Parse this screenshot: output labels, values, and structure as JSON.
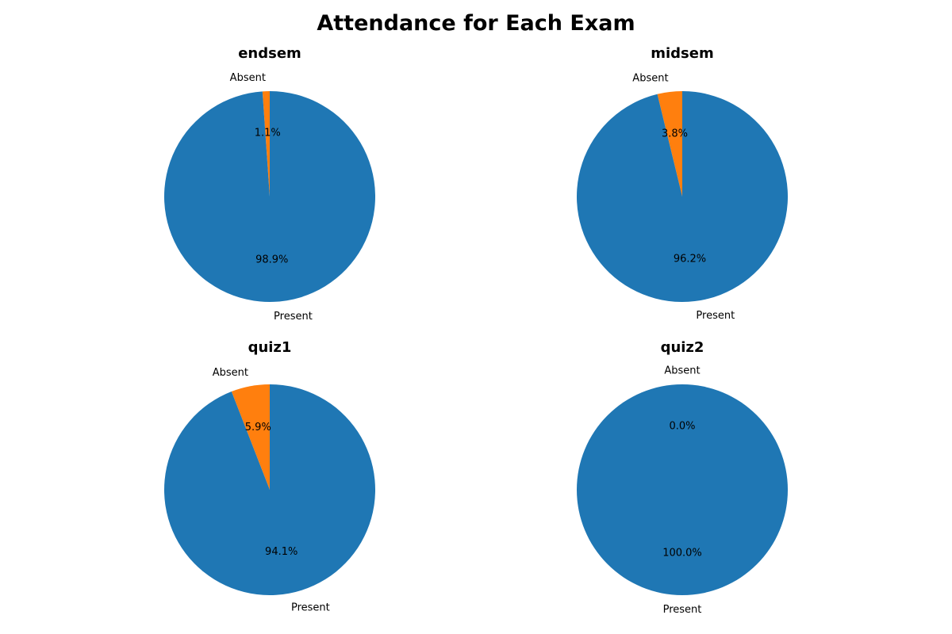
{
  "title": "Attendance for Each Exam",
  "colors": {
    "present": "#1f77b4",
    "absent": "#ff7f0e"
  },
  "chart_data": [
    {
      "type": "pie",
      "title": "endsem",
      "labels": [
        "Absent",
        "Present"
      ],
      "values": [
        1.1,
        98.9
      ],
      "value_labels": [
        "1.1%",
        "98.9%"
      ],
      "colors": [
        "#ff7f0e",
        "#1f77b4"
      ],
      "start_angle_deg": 90,
      "direction": "counterclockwise"
    },
    {
      "type": "pie",
      "title": "midsem",
      "labels": [
        "Absent",
        "Present"
      ],
      "values": [
        3.8,
        96.2
      ],
      "value_labels": [
        "3.8%",
        "96.2%"
      ],
      "colors": [
        "#ff7f0e",
        "#1f77b4"
      ],
      "start_angle_deg": 90,
      "direction": "counterclockwise"
    },
    {
      "type": "pie",
      "title": "quiz1",
      "labels": [
        "Absent",
        "Present"
      ],
      "values": [
        5.9,
        94.1
      ],
      "value_labels": [
        "5.9%",
        "94.1%"
      ],
      "colors": [
        "#ff7f0e",
        "#1f77b4"
      ],
      "start_angle_deg": 90,
      "direction": "counterclockwise"
    },
    {
      "type": "pie",
      "title": "quiz2",
      "labels": [
        "Absent",
        "Present"
      ],
      "values": [
        0.0,
        100.0
      ],
      "value_labels": [
        "0.0%",
        "100.0%"
      ],
      "colors": [
        "#ff7f0e",
        "#1f77b4"
      ],
      "start_angle_deg": 90,
      "direction": "counterclockwise"
    }
  ]
}
